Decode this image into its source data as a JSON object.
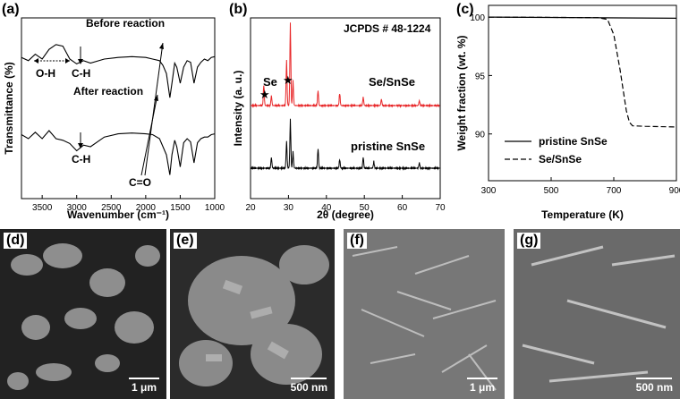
{
  "panels": [
    "(a)",
    "(b)",
    "(c)",
    "(d)",
    "(e)",
    "(f)",
    "(g)"
  ],
  "chart_data": [
    {
      "type": "line",
      "panel": "(a)",
      "ylabel": "Transmittance (%)",
      "xlabel": "Wavenumber (cm⁻¹)",
      "xlim": [
        3800,
        1000
      ],
      "xticks": [
        3500,
        3000,
        2500,
        2000,
        1500,
        1000
      ],
      "series": [
        {
          "name": "Before reaction",
          "x": [
            3800,
            3700,
            3600,
            3500,
            3400,
            3300,
            3200,
            3100,
            3000,
            2900,
            2800,
            2600,
            2400,
            2200,
            2000,
            1900,
            1800,
            1750,
            1700,
            1650,
            1620,
            1580,
            1550,
            1500,
            1450,
            1400,
            1350,
            1300,
            1250,
            1200,
            1150,
            1100,
            1050,
            1000
          ],
          "y": [
            0.62,
            0.58,
            0.66,
            0.6,
            0.72,
            0.78,
            0.76,
            0.6,
            0.54,
            0.58,
            0.55,
            0.6,
            0.62,
            0.63,
            0.62,
            0.6,
            0.58,
            0.52,
            0.42,
            0.12,
            0.3,
            0.55,
            0.5,
            0.3,
            0.5,
            0.58,
            0.56,
            0.3,
            0.5,
            0.56,
            0.6,
            0.58,
            0.62,
            0.63
          ]
        },
        {
          "name": "After reaction",
          "x": [
            3800,
            3700,
            3600,
            3500,
            3400,
            3300,
            3200,
            3100,
            3000,
            2900,
            2800,
            2600,
            2400,
            2200,
            2000,
            1900,
            1800,
            1750,
            1700,
            1650,
            1620,
            1580,
            1550,
            1500,
            1450,
            1400,
            1350,
            1300,
            1250,
            1200,
            1150,
            1100,
            1050,
            1000
          ],
          "y": [
            0.55,
            0.5,
            0.58,
            0.5,
            0.6,
            0.5,
            0.48,
            0.44,
            0.35,
            0.42,
            0.4,
            0.52,
            0.56,
            0.57,
            0.56,
            0.55,
            0.5,
            0.4,
            0.3,
            0.05,
            0.3,
            0.48,
            0.4,
            0.15,
            0.45,
            0.5,
            0.46,
            0.2,
            0.45,
            0.5,
            0.52,
            0.52,
            0.55,
            0.56
          ]
        }
      ],
      "annotations": [
        "Before reaction",
        "After reaction",
        "O-H",
        "C-H",
        "C-H",
        "C=O"
      ]
    },
    {
      "type": "line",
      "panel": "(b)",
      "ylabel": "Intensity (a. u.)",
      "xlabel": "2θ (degree)",
      "xlim": [
        20,
        70
      ],
      "xticks": [
        20,
        30,
        40,
        50,
        60,
        70
      ],
      "reference": "JCPDS # 48-1224",
      "series": [
        {
          "name": "Se/SnSe",
          "color": "#e8282a",
          "peaks": [
            [
              23.5,
              0.25
            ],
            [
              25.5,
              0.12
            ],
            [
              29.5,
              0.55
            ],
            [
              30.5,
              1.0
            ],
            [
              31.2,
              0.3
            ],
            [
              37.8,
              0.18
            ],
            [
              43.5,
              0.15
            ],
            [
              49.7,
              0.1
            ],
            [
              54.5,
              0.08
            ],
            [
              64.5,
              0.06
            ]
          ]
        },
        {
          "name": "pristine SnSe",
          "color": "#000000",
          "peaks": [
            [
              25.5,
              0.1
            ],
            [
              29.5,
              0.25
            ],
            [
              30.5,
              0.45
            ],
            [
              31.2,
              0.15
            ],
            [
              37.8,
              0.18
            ],
            [
              43.5,
              0.08
            ],
            [
              49.7,
              0.1
            ],
            [
              52.5,
              0.06
            ],
            [
              64.5,
              0.05
            ]
          ]
        }
      ],
      "annotations": [
        "Se",
        "★",
        "★"
      ]
    },
    {
      "type": "line",
      "panel": "(c)",
      "ylabel": "Weight fraction (wt. %)",
      "xlabel": "Temperature (K)",
      "xlim": [
        300,
        900
      ],
      "ylim": [
        86,
        101
      ],
      "xticks": [
        300,
        500,
        700,
        900
      ],
      "yticks": [
        90,
        95,
        100
      ],
      "series": [
        {
          "name": "pristine SnSe",
          "style": "solid",
          "x": [
            300,
            900
          ],
          "y": [
            100,
            99.9
          ]
        },
        {
          "name": "Se/SnSe",
          "style": "dashed",
          "x": [
            300,
            650,
            680,
            700,
            720,
            740,
            750,
            760,
            800,
            900
          ],
          "y": [
            100,
            99.95,
            99.8,
            98.5,
            95.5,
            92.0,
            91.0,
            90.7,
            90.65,
            90.6
          ]
        }
      ]
    }
  ],
  "scalebars": {
    "d": "1 μm",
    "e": "500 nm",
    "f": "1 μm",
    "g": "500 nm"
  }
}
